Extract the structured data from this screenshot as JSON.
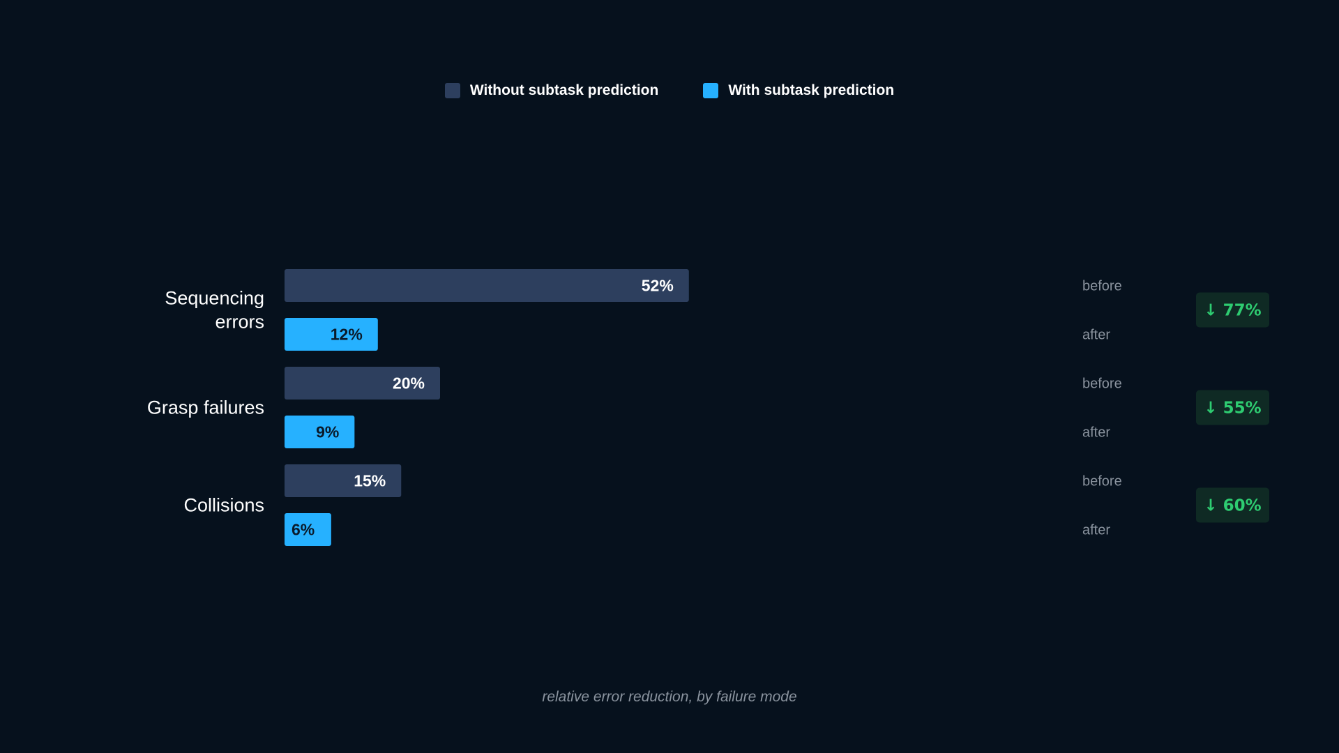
{
  "legend": [
    {
      "label": "Without subtask prediction",
      "color": "#2d3f5e"
    },
    {
      "label": "With subtask prediction",
      "color": "#26b1ff"
    }
  ],
  "caption": "relative error reduction, by failure mode",
  "row_labels": {
    "before": "before",
    "after": "after"
  },
  "colors": {
    "background": "#06111d",
    "without": "#2d3f5e",
    "with": "#26b1ff",
    "badge_bg": "#0f2a24",
    "badge_text": "#2ecc71",
    "muted_text": "#8a939e"
  },
  "chart_data": {
    "type": "bar",
    "orientation": "horizontal",
    "categories": [
      {
        "label_lines": [
          "Sequencing",
          "errors"
        ],
        "before": 52,
        "after": 12,
        "before_label": "52%",
        "after_label": "12%",
        "reduction_label": "77%"
      },
      {
        "label_lines": [
          "Grasp failures"
        ],
        "before": 20,
        "after": 9,
        "before_label": "20%",
        "after_label": "9%",
        "reduction_label": "55%"
      },
      {
        "label_lines": [
          "Collisions"
        ],
        "before": 15,
        "after": 6,
        "before_label": "15%",
        "after_label": "6%",
        "reduction_label": "60%"
      }
    ],
    "series": [
      {
        "name": "Without subtask prediction",
        "key": "before"
      },
      {
        "name": "With subtask prediction",
        "key": "after"
      }
    ],
    "xlim": [
      0,
      100
    ],
    "grid": false,
    "legend_position": "top-center"
  }
}
